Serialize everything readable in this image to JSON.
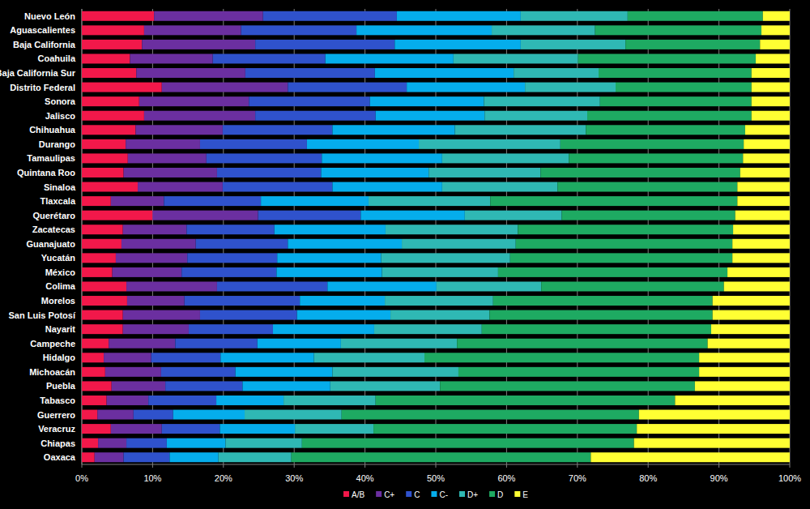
{
  "chart_data": {
    "type": "bar",
    "orientation": "horizontal",
    "stacked": true,
    "grid": true,
    "legend": "bottom",
    "categories": [
      "Nuevo León",
      "Aguascalientes",
      "Baja California",
      "Coahuila",
      "Baja California Sur",
      "Distrito Federal",
      "Sonora",
      "Jalisco",
      "Chihuahua",
      "Durango",
      "Tamaulipas",
      "Quintana Roo",
      "Sinaloa",
      "Tlaxcala",
      "Querétaro",
      "Zacatecas",
      "Guanajuato",
      "Yucatán",
      "México",
      "Colima",
      "Morelos",
      "San Luis Potosí",
      "Nayarit",
      "Campeche",
      "Hidalgo",
      "Michoacán",
      "Puebla",
      "Tabasco",
      "Guerrero",
      "Veracruz",
      "Chiapas",
      "Oaxaca"
    ],
    "xlim": [
      0,
      100
    ],
    "xticks": [
      {
        "value": 0,
        "label": "0%"
      },
      {
        "value": 10,
        "label": "10%"
      },
      {
        "value": 20,
        "label": "20%"
      },
      {
        "value": 30,
        "label": "30%"
      },
      {
        "value": 40,
        "label": "40%"
      },
      {
        "value": 50,
        "label": "50%"
      },
      {
        "value": 60,
        "label": "60%"
      },
      {
        "value": 70,
        "label": "70%"
      },
      {
        "value": 80,
        "label": "80%"
      },
      {
        "value": 90,
        "label": "90%"
      },
      {
        "value": 100,
        "label": "100%"
      }
    ],
    "series": [
      {
        "name": "A/B",
        "color": "#f2184a",
        "values": [
          10.2,
          8.8,
          8.5,
          6.8,
          7.7,
          11.3,
          8.1,
          8.8,
          7.6,
          6.2,
          6.5,
          5.9,
          7.9,
          4.1,
          10.0,
          5.8,
          5.6,
          4.8,
          4.3,
          6.3,
          6.4,
          5.8,
          5.8,
          3.8,
          3.1,
          3.3,
          4.2,
          3.5,
          2.2,
          4.1,
          2.3,
          1.8
        ]
      },
      {
        "name": "C+",
        "color": "#6b2fa0",
        "values": [
          15.4,
          13.7,
          16.0,
          11.7,
          15.4,
          17.8,
          15.5,
          15.7,
          12.3,
          10.5,
          11.1,
          13.2,
          12.0,
          7.5,
          14.9,
          9.0,
          10.5,
          10.1,
          9.8,
          12.8,
          8.1,
          10.9,
          9.3,
          9.4,
          6.7,
          7.9,
          7.6,
          5.9,
          5.1,
          7.2,
          4.0,
          4.1
        ]
      },
      {
        "name": "C",
        "color": "#2f52cc",
        "values": [
          18.9,
          16.3,
          19.7,
          15.9,
          18.3,
          16.8,
          17.1,
          17.0,
          15.5,
          15.1,
          16.3,
          14.7,
          15.5,
          13.7,
          14.5,
          12.4,
          13.0,
          12.7,
          13.4,
          15.6,
          16.3,
          13.7,
          11.9,
          11.6,
          9.8,
          10.5,
          10.9,
          9.6,
          5.6,
          8.2,
          5.7,
          6.5
        ]
      },
      {
        "name": "C-",
        "color": "#05adec",
        "values": [
          17.5,
          19.1,
          17.8,
          18.1,
          19.6,
          16.7,
          16.1,
          15.4,
          17.3,
          15.8,
          17.0,
          15.2,
          15.5,
          15.2,
          14.7,
          15.7,
          16.1,
          14.7,
          14.9,
          15.4,
          12.0,
          13.2,
          14.3,
          11.8,
          13.2,
          13.7,
          12.4,
          9.5,
          10.1,
          10.6,
          8.3,
          6.9
        ]
      },
      {
        "name": "D+",
        "color": "#2fb8b4",
        "values": [
          15.1,
          14.6,
          14.8,
          17.6,
          12.0,
          12.8,
          16.4,
          14.5,
          18.5,
          20.0,
          17.9,
          15.8,
          16.3,
          17.2,
          13.7,
          18.7,
          16.1,
          18.2,
          16.4,
          14.8,
          15.3,
          14.0,
          15.2,
          16.4,
          15.6,
          17.8,
          15.5,
          13.0,
          13.7,
          11.1,
          10.8,
          10.3
        ]
      },
      {
        "name": "D",
        "color": "#1eaa62",
        "values": [
          19.1,
          23.5,
          19.0,
          25.1,
          21.6,
          19.2,
          21.4,
          23.2,
          22.5,
          25.9,
          24.6,
          28.2,
          25.4,
          34.9,
          24.5,
          30.4,
          30.6,
          31.4,
          32.4,
          25.8,
          31.0,
          31.5,
          32.4,
          35.4,
          38.8,
          34.0,
          36.0,
          42.3,
          42.0,
          37.2,
          46.9,
          42.3
        ]
      },
      {
        "name": "E",
        "color": "#ffff33",
        "values": [
          3.8,
          4.0,
          4.2,
          4.8,
          5.4,
          5.4,
          5.4,
          5.4,
          6.3,
          6.5,
          6.6,
          7.0,
          7.4,
          7.4,
          7.7,
          8.0,
          8.1,
          8.1,
          8.8,
          9.3,
          10.9,
          10.9,
          11.1,
          11.6,
          12.8,
          12.8,
          13.4,
          16.2,
          21.3,
          21.6,
          22.0,
          28.1
        ]
      }
    ]
  }
}
